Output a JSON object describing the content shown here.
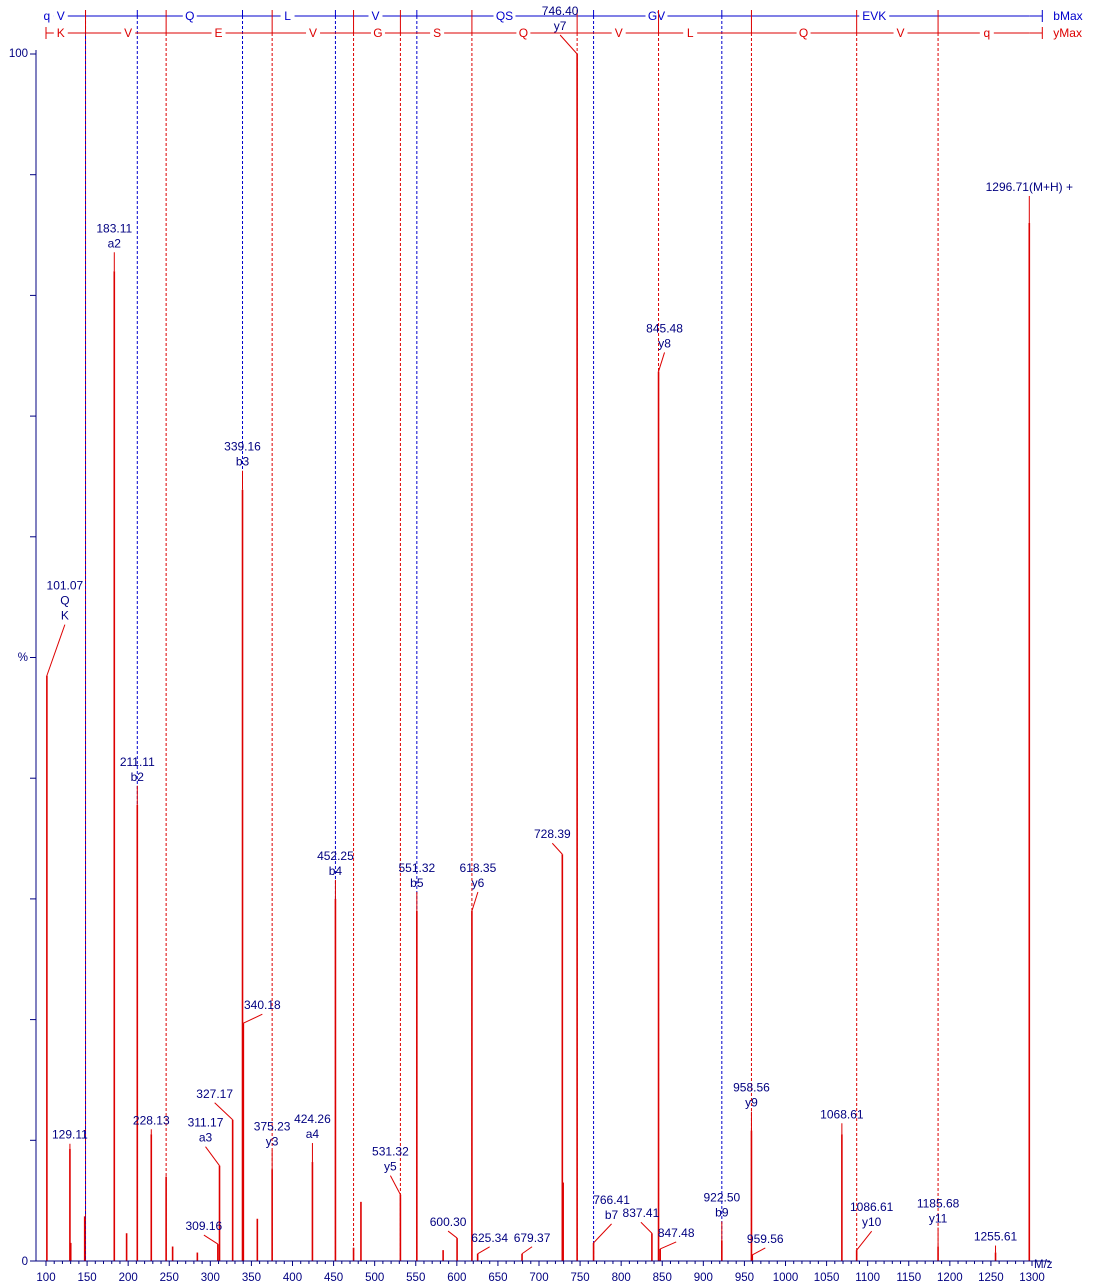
{
  "chart_data": {
    "type": "bar",
    "subtype": "ms-ms-spectrum",
    "xlabel": "M/z",
    "ylabel": "%",
    "xlim": [
      100,
      1300
    ],
    "ylim": [
      0,
      100
    ],
    "x_tick_labels": [
      "100",
      "150",
      "200",
      "250",
      "300",
      "350",
      "400",
      "450",
      "500",
      "550",
      "600",
      "650",
      "700",
      "750",
      "800",
      "850",
      "900",
      "950",
      "1000",
      "1050",
      "1100",
      "1150",
      "1200",
      "1250",
      "1300"
    ],
    "y_tick_labels": [
      "0",
      "%",
      "100"
    ],
    "colors": {
      "peak": "#dd0000",
      "label": "#000080",
      "b_ladder": "#0000cc",
      "y_ladder": "#dd0000",
      "frame": "#000080"
    },
    "b_ladder": {
      "label": "bMax",
      "start": 100,
      "end": 1296.71,
      "residues": [
        {
          "aa": "q",
          "center": 101
        },
        {
          "aa": "V",
          "center": 118
        },
        {
          "aa": "Q",
          "center": 275
        },
        {
          "aa": "L",
          "center": 394
        },
        {
          "aa": "V",
          "center": 501
        },
        {
          "aa": "QS",
          "center": 658
        },
        {
          "aa": "GV",
          "center": 843
        },
        {
          "aa": "EVK",
          "center": 1108
        }
      ],
      "breaks": [
        148.1,
        211.11,
        339.16,
        452.25,
        551.32,
        766.41,
        922.5
      ]
    },
    "y_ladder": {
      "label": "yMax",
      "start": 100,
      "end": 1296.71,
      "residues": [
        {
          "aa": "K",
          "center": 118
        },
        {
          "aa": "V",
          "center": 200
        },
        {
          "aa": "E",
          "center": 310
        },
        {
          "aa": "V",
          "center": 425
        },
        {
          "aa": "G",
          "center": 504
        },
        {
          "aa": "S",
          "center": 576
        },
        {
          "aa": "Q",
          "center": 681
        },
        {
          "aa": "V",
          "center": 797
        },
        {
          "aa": "L",
          "center": 884
        },
        {
          "aa": "Q",
          "center": 1022
        },
        {
          "aa": "V",
          "center": 1140
        },
        {
          "aa": "q",
          "center": 1245
        }
      ],
      "breaks": [
        148.1,
        246.2,
        375.23,
        474.3,
        531.32,
        618.35,
        746.4,
        845.48,
        958.56,
        1086.61,
        1185.68
      ]
    },
    "peaks": [
      {
        "mz": 101.07,
        "intensity": 48.5,
        "label": "101.07",
        "ions": [
          "Q",
          "K"
        ]
      },
      {
        "mz": 129.11,
        "intensity": 9.3,
        "label": "129.11"
      },
      {
        "mz": 130.1,
        "intensity": 1.5
      },
      {
        "mz": 147.1,
        "intensity": 3.7
      },
      {
        "mz": 183.11,
        "intensity": 82,
        "label": "183.11",
        "ions": [
          "a2"
        ]
      },
      {
        "mz": 198.1,
        "intensity": 2.3
      },
      {
        "mz": 211.11,
        "intensity": 37.8,
        "label": "211.11",
        "ions": [
          "b2"
        ]
      },
      {
        "mz": 228.13,
        "intensity": 10.5,
        "label": "228.13"
      },
      {
        "mz": 246.2,
        "intensity": 7
      },
      {
        "mz": 254.1,
        "intensity": 1.2
      },
      {
        "mz": 284.2,
        "intensity": 0.7
      },
      {
        "mz": 309.16,
        "intensity": 1.4,
        "label": "309.16"
      },
      {
        "mz": 311.17,
        "intensity": 7.9,
        "label": "311.17",
        "ions": [
          "a3"
        ]
      },
      {
        "mz": 327.17,
        "intensity": 11.7,
        "label": "327.17"
      },
      {
        "mz": 339.16,
        "intensity": 63.9,
        "label": "339.16",
        "ions": [
          "b3"
        ]
      },
      {
        "mz": 340.18,
        "intensity": 19.7,
        "label": "340.18"
      },
      {
        "mz": 357.2,
        "intensity": 3.5
      },
      {
        "mz": 375.23,
        "intensity": 7.6,
        "label": "375.23",
        "ions": [
          "y3"
        ]
      },
      {
        "mz": 424.26,
        "intensity": 8.2,
        "label": "424.26",
        "ions": [
          "a4"
        ]
      },
      {
        "mz": 452.25,
        "intensity": 30,
        "label": "452.25",
        "ions": [
          "b4"
        ]
      },
      {
        "mz": 474.3,
        "intensity": 1.1
      },
      {
        "mz": 483.3,
        "intensity": 4.9
      },
      {
        "mz": 531.32,
        "intensity": 5.5,
        "label": "531.32",
        "ions": [
          "y5"
        ]
      },
      {
        "mz": 551.32,
        "intensity": 29,
        "label": "551.32",
        "ions": [
          "b5"
        ]
      },
      {
        "mz": 583.3,
        "intensity": 0.9
      },
      {
        "mz": 600.3,
        "intensity": 1.9,
        "label": "600.30"
      },
      {
        "mz": 618.35,
        "intensity": 29,
        "label": "618.35",
        "ions": [
          "y6"
        ]
      },
      {
        "mz": 625.34,
        "intensity": 0.6,
        "label": "625.34"
      },
      {
        "mz": 679.37,
        "intensity": 0.6,
        "label": "679.37"
      },
      {
        "mz": 728.39,
        "intensity": 33.7,
        "label": "728.39"
      },
      {
        "mz": 729.4,
        "intensity": 6.5
      },
      {
        "mz": 746.4,
        "intensity": 100,
        "label": "746.40",
        "ions": [
          "y7"
        ]
      },
      {
        "mz": 766.41,
        "intensity": 1.5,
        "label": "766.41",
        "ions": [
          "b7"
        ]
      },
      {
        "mz": 837.41,
        "intensity": 2.3,
        "label": "837.41"
      },
      {
        "mz": 845.48,
        "intensity": 73.7,
        "label": "845.48",
        "ions": [
          "y8"
        ]
      },
      {
        "mz": 847.48,
        "intensity": 1,
        "label": "847.48"
      },
      {
        "mz": 922.5,
        "intensity": 1.7,
        "label": "922.50",
        "ions": [
          "b9"
        ]
      },
      {
        "mz": 958.56,
        "intensity": 10.8,
        "label": "958.56",
        "ions": [
          "y9"
        ]
      },
      {
        "mz": 959.56,
        "intensity": 0.5,
        "label": "959.56"
      },
      {
        "mz": 1068.61,
        "intensity": 10.5,
        "label": "1068.61"
      },
      {
        "mz": 1086.61,
        "intensity": 0.9,
        "label": "1086.61",
        "ions": [
          "y10"
        ]
      },
      {
        "mz": 1185.68,
        "intensity": 1.2,
        "label": "1185.68",
        "ions": [
          "y11"
        ]
      },
      {
        "mz": 1255.61,
        "intensity": 0.7,
        "label": "1255.61"
      },
      {
        "mz": 1296.71,
        "intensity": 86,
        "label": "1296.71(M+H) +"
      }
    ]
  }
}
